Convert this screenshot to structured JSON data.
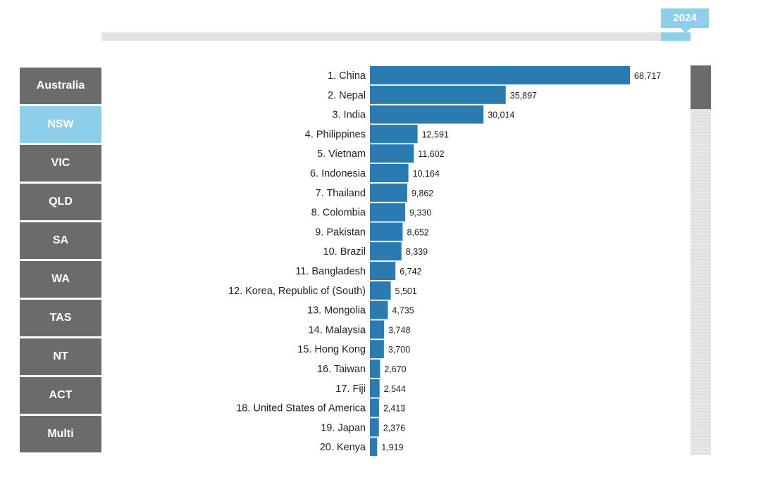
{
  "year": "2024",
  "year_progress": 1.0,
  "states": [
    {
      "label": "Australia",
      "active": false
    },
    {
      "label": "NSW",
      "active": true
    },
    {
      "label": "VIC",
      "active": false
    },
    {
      "label": "QLD",
      "active": false
    },
    {
      "label": "SA",
      "active": false
    },
    {
      "label": "WA",
      "active": false
    },
    {
      "label": "TAS",
      "active": false
    },
    {
      "label": "NT",
      "active": false
    },
    {
      "label": "ACT",
      "active": false
    },
    {
      "label": "Multi",
      "active": false
    }
  ],
  "colors": {
    "bar": "#2b7bb3",
    "accent": "#8dcfea",
    "button": "#6b6b6b"
  },
  "chart_data": {
    "type": "bar",
    "orientation": "horizontal",
    "categories": [
      "1. China",
      "2. Nepal",
      "3. India",
      "4. Philippines",
      "5. Vietnam",
      "6. Indonesia",
      "7. Thailand",
      "8. Colombia",
      "9. Pakistan",
      "10. Brazil",
      "11. Bangladesh",
      "12. Korea, Republic of (South)",
      "13. Mongolia",
      "14. Malaysia",
      "15. Hong Kong",
      "16. Taiwan",
      "17. Fiji",
      "18. United States of America",
      "19. Japan",
      "20. Kenya"
    ],
    "values": [
      68717,
      35897,
      30014,
      12591,
      11602,
      10164,
      9862,
      9330,
      8652,
      8339,
      6742,
      5501,
      4735,
      3748,
      3700,
      2670,
      2544,
      2413,
      2376,
      1919
    ],
    "value_labels": [
      "68,717",
      "35,897",
      "30,014",
      "12,591",
      "11,602",
      "10,164",
      "9,862",
      "9,330",
      "8,652",
      "8,339",
      "6,742",
      "5,501",
      "4,735",
      "3,748",
      "3,700",
      "2,670",
      "2,544",
      "2,413",
      "2,376",
      "1,919"
    ],
    "title": "",
    "xlabel": "",
    "ylabel": "",
    "grid": false,
    "legend": "none"
  }
}
